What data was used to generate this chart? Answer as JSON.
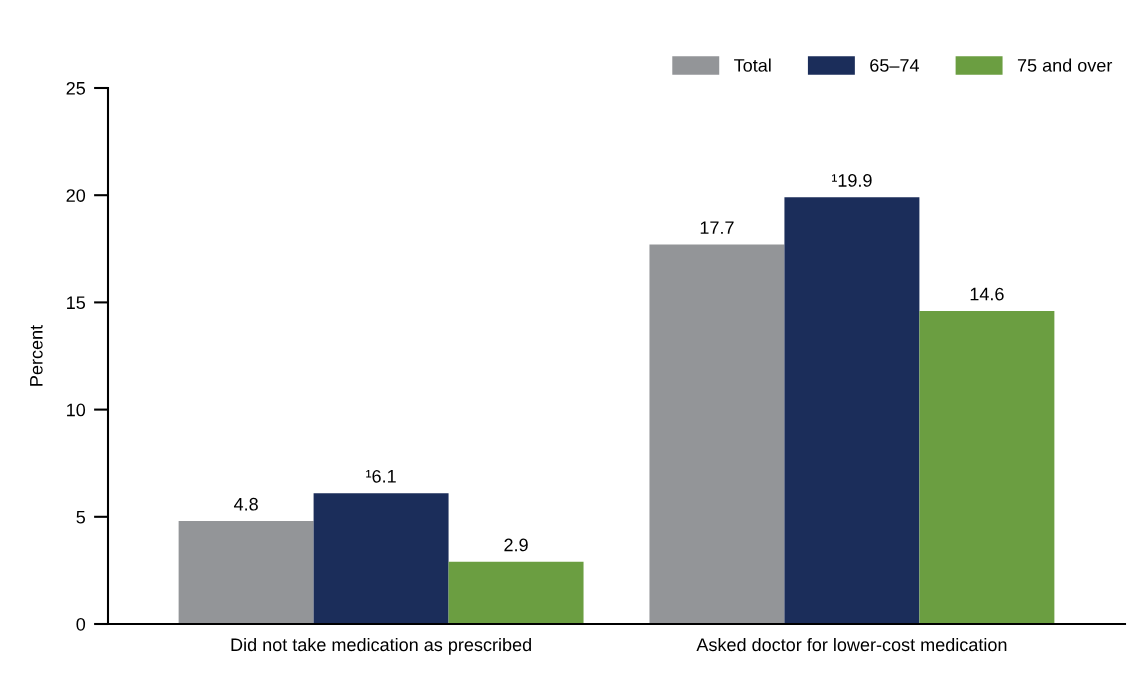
{
  "chart_data": {
    "type": "bar",
    "ylabel": "Percent",
    "categories": [
      "Did not take medication as prescribed",
      "Asked doctor for lower-cost medication"
    ],
    "series": [
      {
        "name": "Total",
        "color": "#939598",
        "values": [
          4.8,
          17.7
        ],
        "value_labels": [
          "4.8",
          "17.7"
        ]
      },
      {
        "name": "65–74",
        "color": "#1b2d5a",
        "values": [
          6.1,
          19.9
        ],
        "value_labels": [
          "¹6.1",
          "¹19.9"
        ]
      },
      {
        "name": "75 and over",
        "color": "#6b9e41",
        "values": [
          2.9,
          14.6
        ],
        "value_labels": [
          "2.9",
          "14.6"
        ]
      }
    ],
    "ylim": [
      0,
      25
    ],
    "yticks": [
      0,
      5,
      10,
      15,
      20,
      25
    ],
    "grid": false,
    "legend": "top right"
  }
}
